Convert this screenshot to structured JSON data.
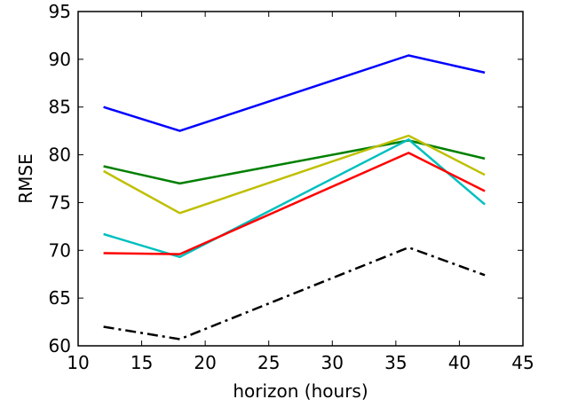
{
  "chart_data": {
    "type": "line",
    "title": "",
    "xlabel": "horizon (hours)",
    "ylabel": "RMSE",
    "xlim": [
      10,
      45
    ],
    "ylim": [
      60,
      95
    ],
    "xticks": [
      10,
      15,
      20,
      25,
      30,
      35,
      40,
      45
    ],
    "yticks": [
      60,
      65,
      70,
      75,
      80,
      85,
      90,
      95
    ],
    "grid": false,
    "x": [
      12,
      18,
      36,
      42
    ],
    "series": [
      {
        "color": "#0000ff",
        "dash": "solid",
        "values": [
          85.0,
          82.5,
          90.4,
          88.6
        ]
      },
      {
        "color": "#008000",
        "dash": "solid",
        "values": [
          78.8,
          77.0,
          81.5,
          79.6
        ]
      },
      {
        "color": "#bfbf00",
        "dash": "solid",
        "values": [
          78.3,
          73.9,
          82.0,
          77.9
        ]
      },
      {
        "color": "#00bfbf",
        "dash": "solid",
        "values": [
          71.7,
          69.3,
          81.6,
          74.8
        ]
      },
      {
        "color": "#ff0000",
        "dash": "solid",
        "values": [
          69.7,
          69.6,
          80.2,
          76.2
        ]
      },
      {
        "color": "#000000",
        "dash": "dashdot",
        "values": [
          62.0,
          60.7,
          70.3,
          67.4
        ]
      }
    ]
  }
}
